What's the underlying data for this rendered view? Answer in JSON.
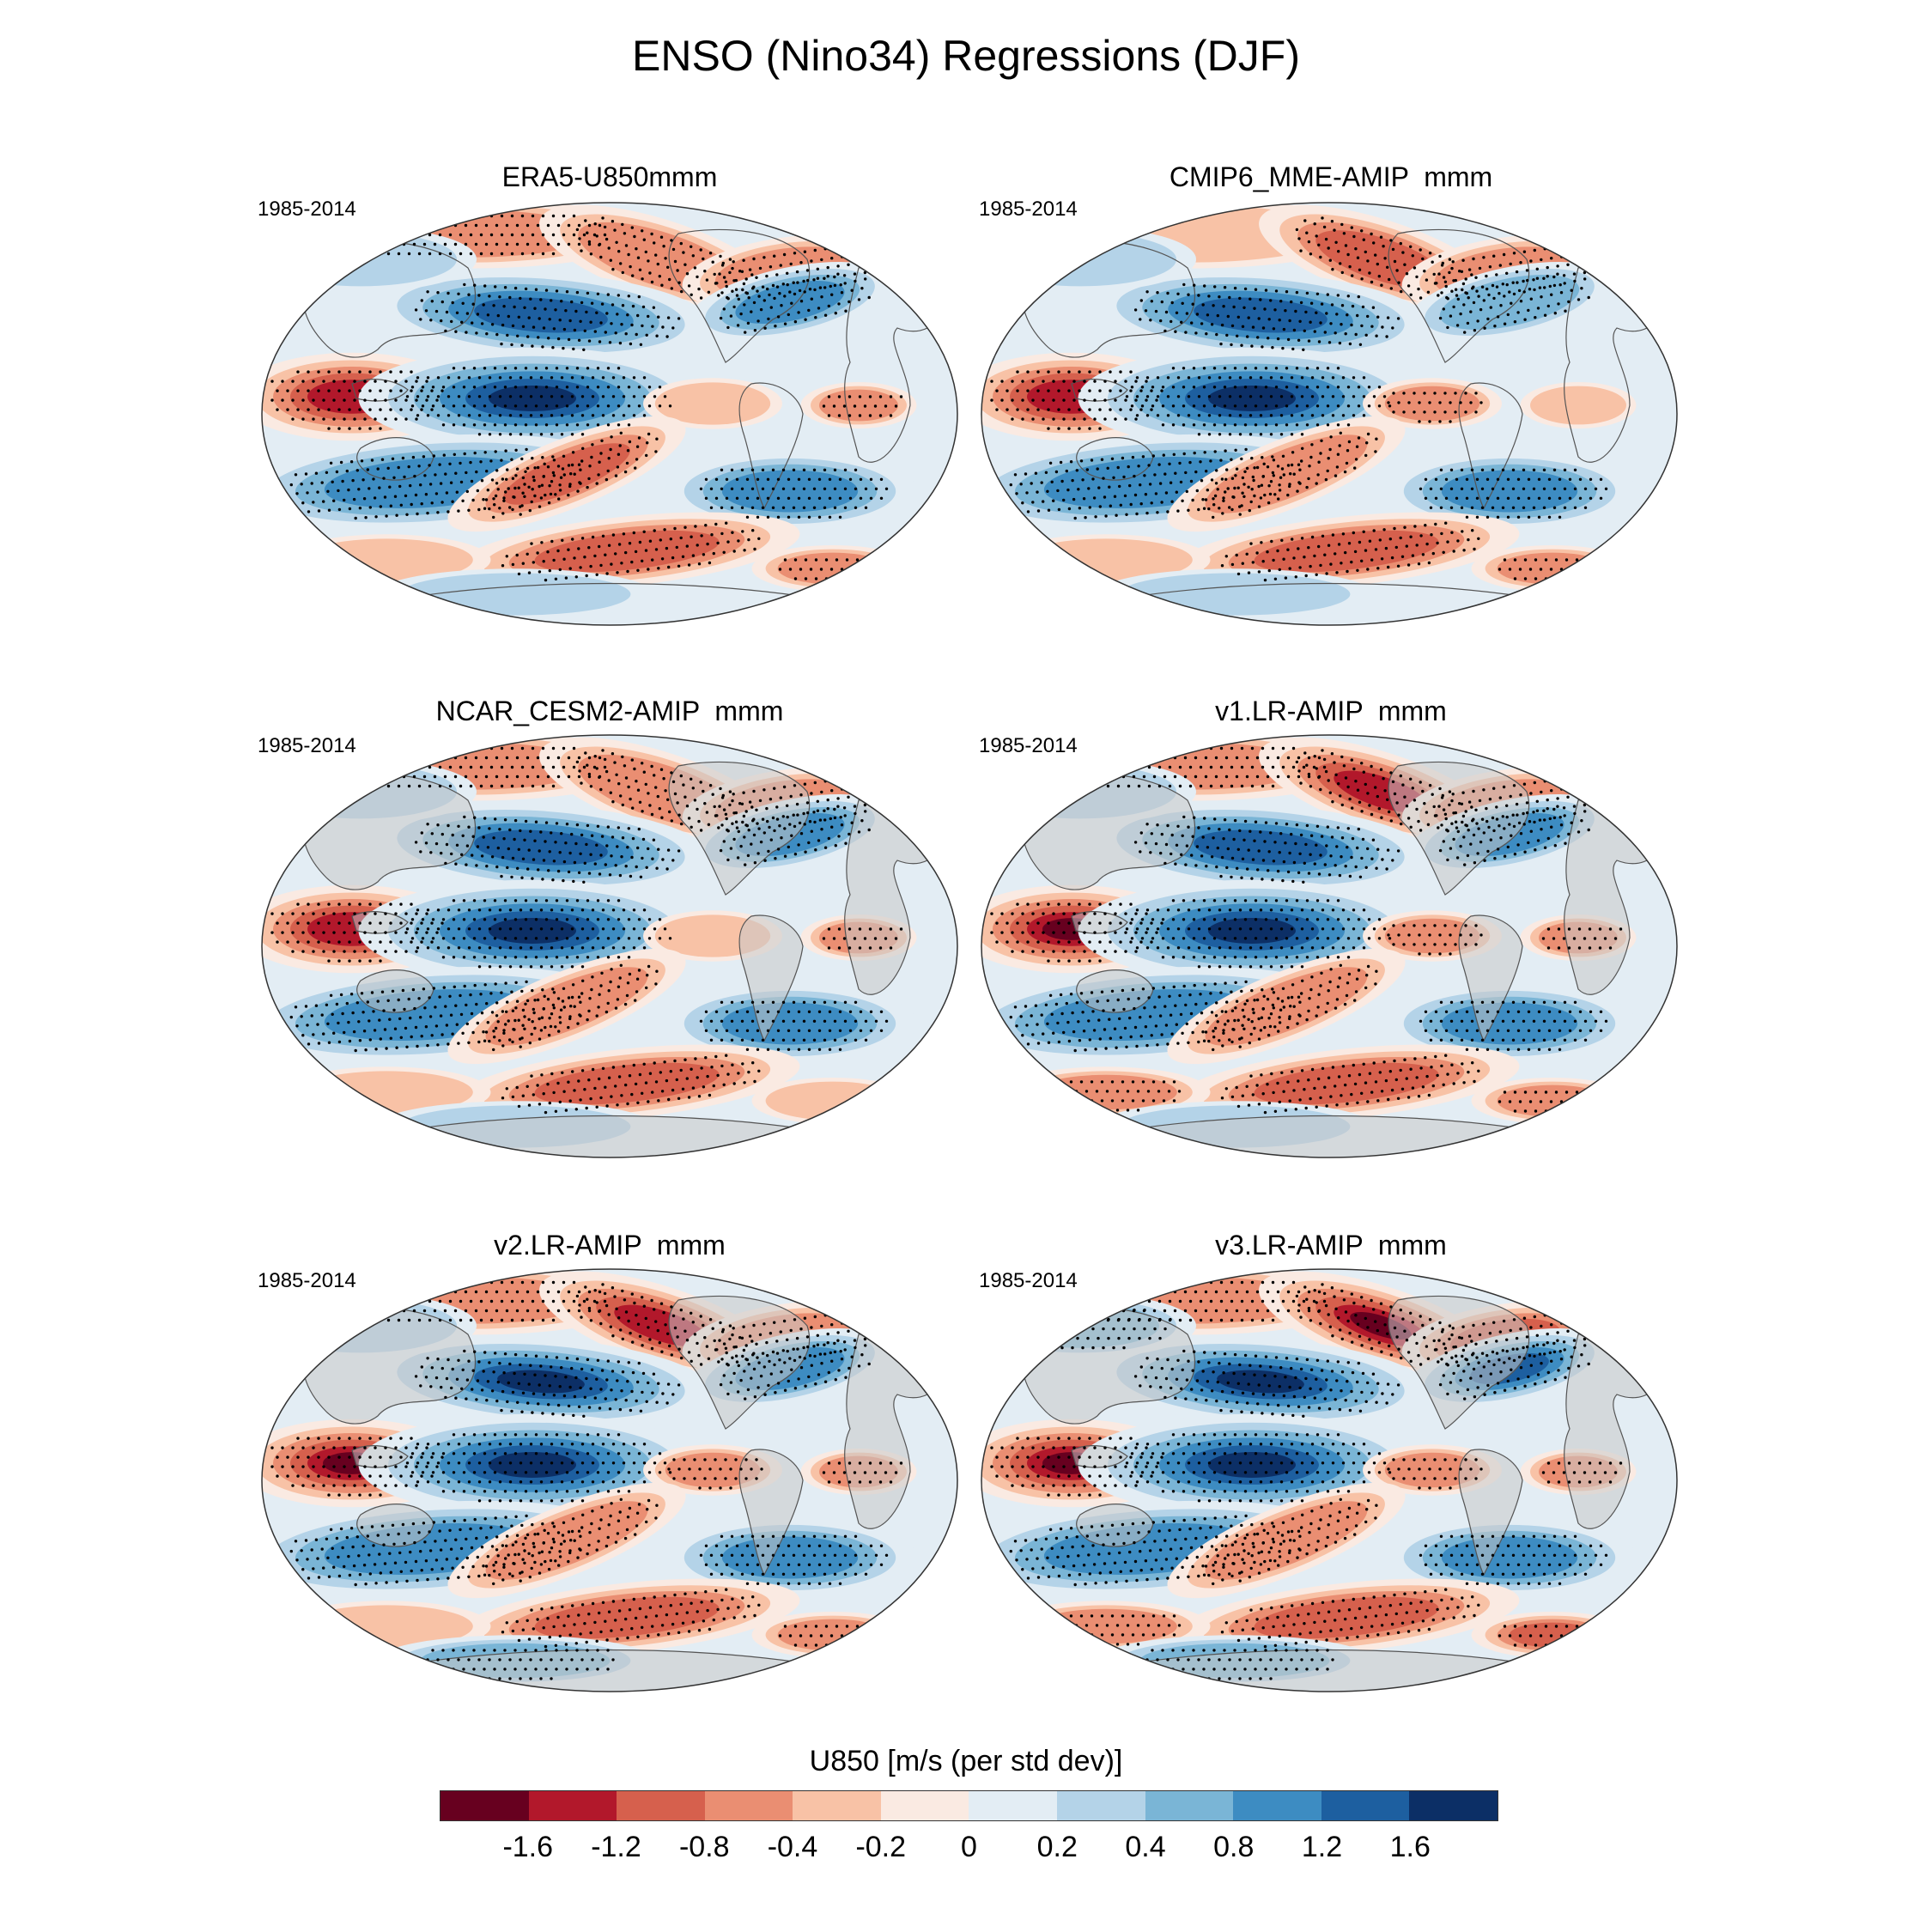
{
  "title": "ENSO (Nino34) Regressions (DJF)",
  "panels": [
    {
      "title": "ERA5-U850mmm",
      "period": "1985-2014"
    },
    {
      "title": "CMIP6_MME-AMIP  mmm",
      "period": "1985-2014"
    },
    {
      "title": "NCAR_CESM2-AMIP  mmm",
      "period": "1985-2014"
    },
    {
      "title": "v1.LR-AMIP  mmm",
      "period": "1985-2014"
    },
    {
      "title": "v2.LR-AMIP  mmm",
      "period": "1985-2014"
    },
    {
      "title": "v3.LR-AMIP  mmm",
      "period": "1985-2014"
    }
  ],
  "colorbar": {
    "label": "U850 [m/s (per std dev)]",
    "ticks": [
      "-1.6",
      "-1.2",
      "-0.8",
      "-0.4",
      "-0.2",
      "0",
      "0.2",
      "0.4",
      "0.8",
      "1.2",
      "1.6"
    ],
    "colors": [
      "#67001f",
      "#b2182b",
      "#d6604d",
      "#ea8e72",
      "#f8c2a6",
      "#faeae2",
      "#e3edf4",
      "#b4d3e8",
      "#7ab5d6",
      "#3d8cc2",
      "#1d5fa0",
      "#0c2f66"
    ]
  },
  "land_color": "#cfcfcf",
  "border_color": "#555555"
}
